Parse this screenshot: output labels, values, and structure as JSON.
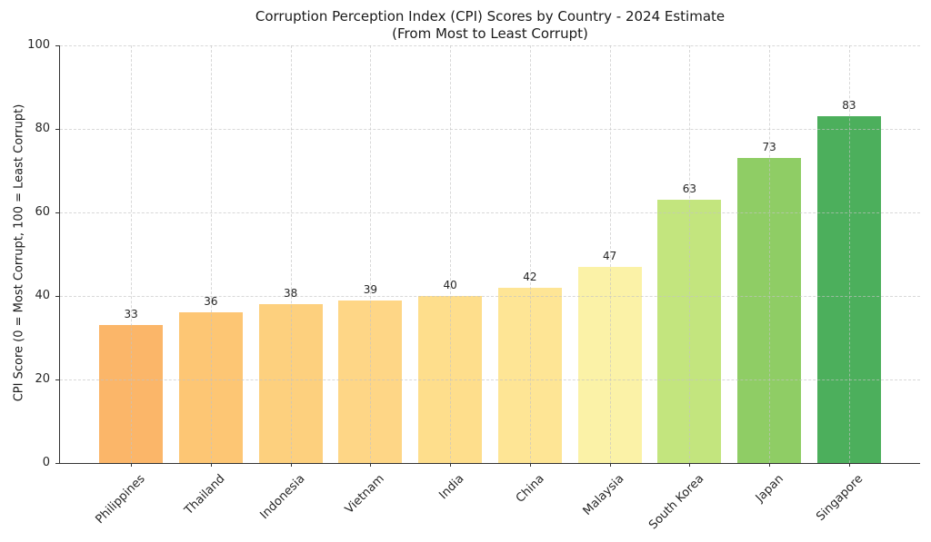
{
  "chart_data": {
    "type": "bar",
    "title": "Corruption Perception Index (CPI) Scores by Country - 2024 Estimate",
    "subtitle": "(From Most to Least Corrupt)",
    "ylabel": "CPI Score (0 = Most Corrupt, 100 = Least Corrupt)",
    "xlabel": "",
    "categories": [
      "Philippines",
      "Thailand",
      "Indonesia",
      "Vietnam",
      "India",
      "China",
      "Malaysia",
      "South Korea",
      "Japan",
      "Singapore"
    ],
    "values": [
      33,
      36,
      38,
      39,
      40,
      42,
      47,
      63,
      73,
      83
    ],
    "bar_colors": [
      "#FBB669",
      "#FDC674",
      "#FDD07E",
      "#FED686",
      "#FEDE8C",
      "#FEE595",
      "#FBF2A7",
      "#C3E57E",
      "#8FCD65",
      "#4CAF5C"
    ],
    "ylim": [
      0,
      100
    ],
    "yticks": [
      0,
      20,
      40,
      60,
      80,
      100
    ],
    "grid": true,
    "grid_style": "dashed",
    "grid_over_bars": true,
    "legend": "none",
    "bar_width_ratio": 0.8
  },
  "style": {
    "background": "#ffffff",
    "axis_color": "#333333",
    "grid_color": "#c3c3c3",
    "text_color": "#262626",
    "title_color": "#1a1a1a"
  }
}
